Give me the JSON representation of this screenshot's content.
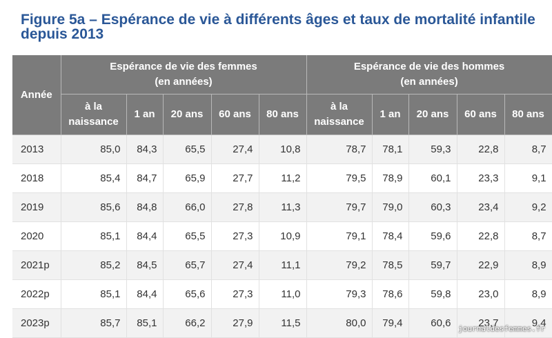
{
  "title_line1": "Figure 5a – Espérance de vie à différents âges et taux de mortalité infantile",
  "title_line2": "depuis 2013",
  "header": {
    "year": "Année",
    "women_group_l1": "Espérance de vie des femmes",
    "women_group_l2": "(en années)",
    "men_group_l1": "Espérance de vie des hommes",
    "men_group_l2": "(en années)",
    "birth_l1": "à la",
    "birth_l2": "naissance",
    "age_1": "1 an",
    "age_20": "20 ans",
    "age_60": "60 ans",
    "age_80": "80 ans"
  },
  "rows": [
    {
      "year": "2013",
      "w": [
        "85,0",
        "84,3",
        "65,5",
        "27,4",
        "10,8"
      ],
      "m": [
        "78,7",
        "78,1",
        "59,3",
        "22,8",
        "8,7"
      ]
    },
    {
      "year": "2018",
      "w": [
        "85,4",
        "84,7",
        "65,9",
        "27,7",
        "11,2"
      ],
      "m": [
        "79,5",
        "78,9",
        "60,1",
        "23,3",
        "9,1"
      ]
    },
    {
      "year": "2019",
      "w": [
        "85,6",
        "84,8",
        "66,0",
        "27,8",
        "11,3"
      ],
      "m": [
        "79,7",
        "79,0",
        "60,3",
        "23,4",
        "9,2"
      ]
    },
    {
      "year": "2020",
      "w": [
        "85,1",
        "84,4",
        "65,5",
        "27,3",
        "10,9"
      ],
      "m": [
        "79,1",
        "78,4",
        "59,6",
        "22,8",
        "8,7"
      ]
    },
    {
      "year": "2021p",
      "w": [
        "85,2",
        "84,5",
        "65,7",
        "27,4",
        "11,1"
      ],
      "m": [
        "79,2",
        "78,5",
        "59,7",
        "22,9",
        "8,9"
      ]
    },
    {
      "year": "2022p",
      "w": [
        "85,1",
        "84,4",
        "65,6",
        "27,3",
        "11,0"
      ],
      "m": [
        "79,3",
        "78,6",
        "59,8",
        "23,0",
        "8,9"
      ]
    },
    {
      "year": "2023p",
      "w": [
        "85,7",
        "85,1",
        "66,2",
        "27,9",
        "11,5"
      ],
      "m": [
        "80,0",
        "79,4",
        "60,6",
        "23,7",
        "9,4"
      ]
    }
  ],
  "watermark": "journaldesfemmes.fr"
}
